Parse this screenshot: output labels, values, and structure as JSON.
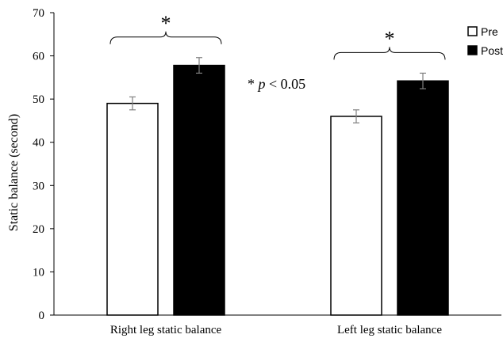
{
  "chart_data": {
    "type": "bar",
    "categories": [
      "Right leg static balance",
      "Left leg static balance"
    ],
    "series": [
      {
        "name": "Pre",
        "values": [
          49,
          46
        ],
        "errors": [
          1.5,
          1.5
        ],
        "color": "#ffffff",
        "stroke": "#000000"
      },
      {
        "name": "Post",
        "values": [
          57.8,
          54.2
        ],
        "errors": [
          1.8,
          1.8
        ],
        "color": "#000000",
        "stroke": "#000000"
      }
    ],
    "ylabel": "Static balance (second)",
    "xlabel": "",
    "ylim": [
      0,
      70
    ],
    "yticks": [
      0,
      10,
      20,
      30,
      40,
      50,
      60,
      70
    ],
    "grid": false,
    "legend_position": "top-right",
    "significance": [
      {
        "category": "Right leg static balance",
        "label": "*"
      },
      {
        "category": "Left leg static balance",
        "label": "*"
      }
    ],
    "annotation": {
      "prefix": "* ",
      "italic": "p",
      "suffix": " < 0.05"
    }
  }
}
